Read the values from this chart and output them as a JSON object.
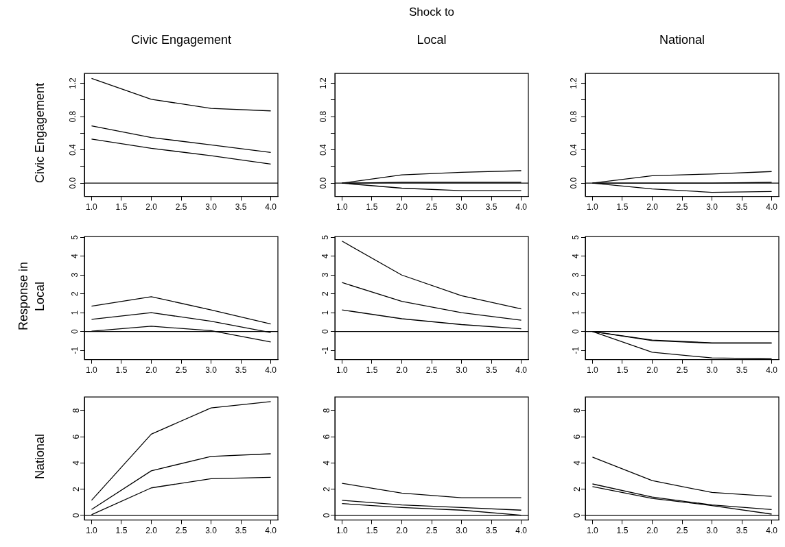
{
  "chart_data": [
    {
      "type": "line",
      "title": "Civic Engagement",
      "ylabel": "Civic Engagement",
      "x": [
        1,
        2,
        3,
        4
      ],
      "series": [
        {
          "color": "#000000",
          "values": [
            1.26,
            1.01,
            0.9,
            0.87
          ]
        },
        {
          "color": "#000000",
          "values": [
            0.69,
            0.55,
            0.46,
            0.37
          ]
        },
        {
          "color": "#000000",
          "values": [
            0.53,
            0.42,
            0.33,
            0.23
          ]
        }
      ],
      "xlim": [
        0.88,
        4.12
      ],
      "ylim": [
        -0.16,
        1.32
      ],
      "xticks": [
        {
          "value": 1,
          "label": "1.0"
        },
        {
          "value": 1.5,
          "label": "1.5"
        },
        {
          "value": 2,
          "label": "2.0"
        },
        {
          "value": 2.5,
          "label": "2.5"
        },
        {
          "value": 3,
          "label": "3.0"
        },
        {
          "value": 3.5,
          "label": "3.5"
        },
        {
          "value": 4,
          "label": "4.0"
        }
      ],
      "yticks": [
        {
          "value": 0,
          "label": "0.0"
        },
        {
          "value": 0.2,
          "label": null
        },
        {
          "value": 0.4,
          "label": "0.4"
        },
        {
          "value": 0.6,
          "label": null
        },
        {
          "value": 0.8,
          "label": "0.8"
        },
        {
          "value": 1,
          "label": null
        },
        {
          "value": 1.2,
          "label": "1.2"
        }
      ],
      "ref_lines": [
        {
          "axis": "y",
          "value": 0
        }
      ],
      "marker": "none"
    },
    {
      "type": "line",
      "title": "Local",
      "annotations": [
        "Shock to"
      ],
      "x": [
        1,
        2,
        3,
        4
      ],
      "series": [
        {
          "color": "#000000",
          "values": [
            0,
            0.1,
            0.13,
            0.15
          ]
        },
        {
          "color": "#000000",
          "values": [
            0,
            0.01,
            0.01,
            0.01
          ]
        },
        {
          "color": "#000000",
          "values": [
            0,
            -0.06,
            -0.09,
            -0.09
          ]
        }
      ],
      "xlim": [
        0.88,
        4.12
      ],
      "ylim": [
        -0.16,
        1.32
      ],
      "xticks": [
        {
          "value": 1,
          "label": "1.0"
        },
        {
          "value": 1.5,
          "label": "1.5"
        },
        {
          "value": 2,
          "label": "2.0"
        },
        {
          "value": 2.5,
          "label": "2.5"
        },
        {
          "value": 3,
          "label": "3.0"
        },
        {
          "value": 3.5,
          "label": "3.5"
        },
        {
          "value": 4,
          "label": "4.0"
        }
      ],
      "yticks": [
        {
          "value": 0,
          "label": "0.0"
        },
        {
          "value": 0.2,
          "label": null
        },
        {
          "value": 0.4,
          "label": "0.4"
        },
        {
          "value": 0.6,
          "label": null
        },
        {
          "value": 0.8,
          "label": "0.8"
        },
        {
          "value": 1,
          "label": null
        },
        {
          "value": 1.2,
          "label": "1.2"
        }
      ],
      "ref_lines": [
        {
          "axis": "y",
          "value": 0
        }
      ],
      "marker": "none"
    },
    {
      "type": "line",
      "title": "National",
      "x": [
        1,
        2,
        3,
        4
      ],
      "series": [
        {
          "color": "#000000",
          "values": [
            0,
            0.09,
            0.11,
            0.14
          ]
        },
        {
          "color": "#000000",
          "values": [
            0,
            0,
            0,
            0.01
          ]
        },
        {
          "color": "#000000",
          "values": [
            0,
            -0.07,
            -0.11,
            -0.1
          ]
        }
      ],
      "xlim": [
        0.88,
        4.12
      ],
      "ylim": [
        -0.16,
        1.32
      ],
      "xticks": [
        {
          "value": 1,
          "label": "1.0"
        },
        {
          "value": 1.5,
          "label": "1.5"
        },
        {
          "value": 2,
          "label": "2.0"
        },
        {
          "value": 2.5,
          "label": "2.5"
        },
        {
          "value": 3,
          "label": "3.0"
        },
        {
          "value": 3.5,
          "label": "3.5"
        },
        {
          "value": 4,
          "label": "4.0"
        }
      ],
      "yticks": [
        {
          "value": 0,
          "label": "0.0"
        },
        {
          "value": 0.2,
          "label": null
        },
        {
          "value": 0.4,
          "label": "0.4"
        },
        {
          "value": 0.6,
          "label": null
        },
        {
          "value": 0.8,
          "label": "0.8"
        },
        {
          "value": 1,
          "label": null
        },
        {
          "value": 1.2,
          "label": "1.2"
        }
      ],
      "ref_lines": [
        {
          "axis": "y",
          "value": 0
        }
      ],
      "marker": "none"
    },
    {
      "type": "line",
      "ylabel": "Local",
      "annotations": [
        "Response in"
      ],
      "x": [
        1,
        2,
        3,
        4
      ],
      "series": [
        {
          "color": "#000000",
          "values": [
            1.35,
            1.85,
            1.15,
            0.4
          ]
        },
        {
          "color": "#000000",
          "values": [
            0.65,
            1.0,
            0.55,
            -0.05
          ]
        },
        {
          "color": "#000000",
          "values": [
            0.02,
            0.28,
            0.05,
            -0.55
          ]
        }
      ],
      "xlim": [
        0.88,
        4.12
      ],
      "ylim": [
        -1.49,
        5.04
      ],
      "xticks": [
        {
          "value": 1,
          "label": "1.0"
        },
        {
          "value": 1.5,
          "label": "1.5"
        },
        {
          "value": 2,
          "label": "2.0"
        },
        {
          "value": 2.5,
          "label": "2.5"
        },
        {
          "value": 3,
          "label": "3.0"
        },
        {
          "value": 3.5,
          "label": "3.5"
        },
        {
          "value": 4,
          "label": "4.0"
        }
      ],
      "yticks": [
        -1,
        0,
        1,
        2,
        3,
        4,
        5
      ],
      "ref_lines": [
        {
          "axis": "y",
          "value": 0
        }
      ],
      "marker": "none"
    },
    {
      "type": "line",
      "x": [
        1,
        2,
        3,
        4
      ],
      "series": [
        {
          "color": "#000000",
          "values": [
            4.8,
            3.0,
            1.9,
            1.2
          ]
        },
        {
          "color": "#000000",
          "values": [
            2.6,
            1.6,
            1.0,
            0.6
          ]
        },
        {
          "color": "#000000",
          "values": [
            1.15,
            0.68,
            0.37,
            0.15
          ]
        }
      ],
      "xlim": [
        0.88,
        4.12
      ],
      "ylim": [
        -1.49,
        5.04
      ],
      "xticks": [
        {
          "value": 1,
          "label": "1.0"
        },
        {
          "value": 1.5,
          "label": "1.5"
        },
        {
          "value": 2,
          "label": "2.0"
        },
        {
          "value": 2.5,
          "label": "2.5"
        },
        {
          "value": 3,
          "label": "3.0"
        },
        {
          "value": 3.5,
          "label": "3.5"
        },
        {
          "value": 4,
          "label": "4.0"
        }
      ],
      "yticks": [
        -1,
        0,
        1,
        2,
        3,
        4,
        5
      ],
      "ref_lines": [
        {
          "axis": "y",
          "value": 0
        }
      ],
      "marker": "none"
    },
    {
      "type": "line",
      "x": [
        1,
        2,
        3,
        4
      ],
      "series": [
        {
          "color": "#000000",
          "values": [
            0,
            -0.45,
            -0.6,
            -0.6
          ]
        },
        {
          "color": "#000000",
          "values": [
            0,
            -0.48,
            -0.62,
            -0.62
          ]
        },
        {
          "color": "#000000",
          "values": [
            0,
            -1.1,
            -1.4,
            -1.45
          ]
        }
      ],
      "xlim": [
        0.88,
        4.12
      ],
      "ylim": [
        -1.49,
        5.04
      ],
      "xticks": [
        {
          "value": 1,
          "label": "1.0"
        },
        {
          "value": 1.5,
          "label": "1.5"
        },
        {
          "value": 2,
          "label": "2.0"
        },
        {
          "value": 2.5,
          "label": "2.5"
        },
        {
          "value": 3,
          "label": "3.0"
        },
        {
          "value": 3.5,
          "label": "3.5"
        },
        {
          "value": 4,
          "label": "4.0"
        }
      ],
      "yticks": [
        -1,
        0,
        1,
        2,
        3,
        4,
        5
      ],
      "ref_lines": [
        {
          "axis": "y",
          "value": 0
        }
      ],
      "marker": "none"
    },
    {
      "type": "line",
      "ylabel": "National",
      "x": [
        1,
        2,
        3,
        4
      ],
      "series": [
        {
          "color": "#000000",
          "values": [
            1.15,
            6.2,
            8.2,
            8.68
          ]
        },
        {
          "color": "#000000",
          "values": [
            0.45,
            3.4,
            4.5,
            4.7
          ]
        },
        {
          "color": "#000000",
          "values": [
            0.05,
            2.1,
            2.8,
            2.9
          ]
        }
      ],
      "xlim": [
        0.88,
        4.12
      ],
      "ylim": [
        -0.35,
        9.03
      ],
      "xticks": [
        {
          "value": 1,
          "label": "1.0"
        },
        {
          "value": 1.5,
          "label": "1.5"
        },
        {
          "value": 2,
          "label": "2.0"
        },
        {
          "value": 2.5,
          "label": "2.5"
        },
        {
          "value": 3,
          "label": "3.0"
        },
        {
          "value": 3.5,
          "label": "3.5"
        },
        {
          "value": 4,
          "label": "4.0"
        }
      ],
      "yticks": [
        0,
        2,
        4,
        6,
        8
      ],
      "ref_lines": [
        {
          "axis": "y",
          "value": 0
        }
      ],
      "marker": "none"
    },
    {
      "type": "line",
      "x": [
        1,
        2,
        3,
        4
      ],
      "series": [
        {
          "color": "#000000",
          "values": [
            2.45,
            1.7,
            1.35,
            1.35
          ]
        },
        {
          "color": "#000000",
          "values": [
            1.15,
            0.8,
            0.6,
            0.4
          ]
        },
        {
          "color": "#000000",
          "values": [
            0.9,
            0.6,
            0.4,
            0.02
          ]
        }
      ],
      "xlim": [
        0.88,
        4.12
      ],
      "ylim": [
        -0.35,
        9.03
      ],
      "xticks": [
        {
          "value": 1,
          "label": "1.0"
        },
        {
          "value": 1.5,
          "label": "1.5"
        },
        {
          "value": 2,
          "label": "2.0"
        },
        {
          "value": 2.5,
          "label": "2.5"
        },
        {
          "value": 3,
          "label": "3.0"
        },
        {
          "value": 3.5,
          "label": "3.5"
        },
        {
          "value": 4,
          "label": "4.0"
        }
      ],
      "yticks": [
        0,
        2,
        4,
        6,
        8
      ],
      "ref_lines": [
        {
          "axis": "y",
          "value": 0
        }
      ],
      "marker": "none"
    },
    {
      "type": "line",
      "x": [
        1,
        2,
        3,
        4
      ],
      "series": [
        {
          "color": "#000000",
          "values": [
            4.45,
            2.65,
            1.75,
            1.45
          ]
        },
        {
          "color": "#000000",
          "values": [
            2.4,
            1.4,
            0.8,
            0.45
          ]
        },
        {
          "color": "#000000",
          "values": [
            2.2,
            1.3,
            0.75,
            0.1
          ]
        }
      ],
      "xlim": [
        0.88,
        4.12
      ],
      "ylim": [
        -0.35,
        9.03
      ],
      "xticks": [
        {
          "value": 1,
          "label": "1.0"
        },
        {
          "value": 1.5,
          "label": "1.5"
        },
        {
          "value": 2,
          "label": "2.0"
        },
        {
          "value": 2.5,
          "label": "2.5"
        },
        {
          "value": 3,
          "label": "3.0"
        },
        {
          "value": 3.5,
          "label": "3.5"
        },
        {
          "value": 4,
          "label": "4.0"
        }
      ],
      "yticks": [
        0,
        2,
        4,
        6,
        8
      ],
      "ref_lines": [
        {
          "axis": "y",
          "value": 0
        }
      ],
      "marker": "none"
    }
  ]
}
